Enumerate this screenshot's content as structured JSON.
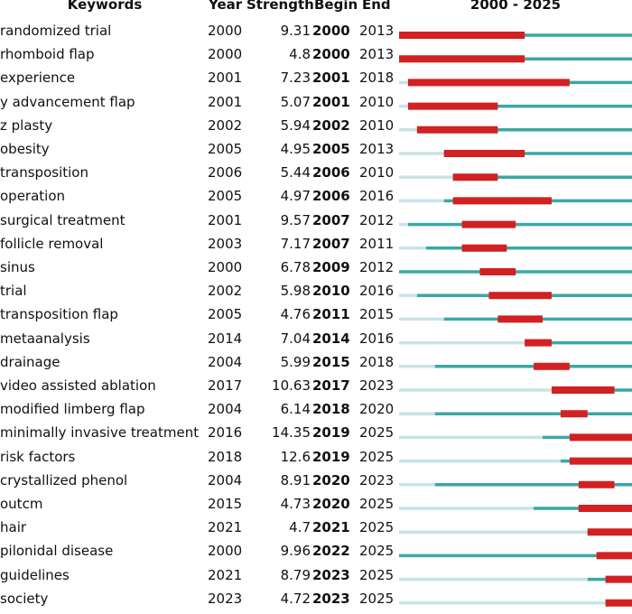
{
  "chart_data": {
    "type": "bar",
    "headers": {
      "keywords": "Keywords",
      "year": "Year",
      "strength": "Strength",
      "begin": "Begin",
      "end": "End",
      "range": "2000 - 2025"
    },
    "range": [
      2000,
      2025
    ],
    "colors": {
      "before": "#c9e3e5",
      "active": "#3aa8a5",
      "burst": "#d32022"
    },
    "rows": [
      {
        "keyword": "randomized trial",
        "year": "2000",
        "strength": "9.31",
        "begin": "2000",
        "end": "2013"
      },
      {
        "keyword": "rhomboid flap",
        "year": "2000",
        "strength": "4.8",
        "begin": "2000",
        "end": "2013"
      },
      {
        "keyword": "experience",
        "year": "2001",
        "strength": "7.23",
        "begin": "2001",
        "end": "2018"
      },
      {
        "keyword": "y advancement flap",
        "year": "2001",
        "strength": "5.07",
        "begin": "2001",
        "end": "2010"
      },
      {
        "keyword": "z plasty",
        "year": "2002",
        "strength": "5.94",
        "begin": "2002",
        "end": "2010"
      },
      {
        "keyword": "obesity",
        "year": "2005",
        "strength": "4.95",
        "begin": "2005",
        "end": "2013"
      },
      {
        "keyword": "transposition",
        "year": "2006",
        "strength": "5.44",
        "begin": "2006",
        "end": "2010"
      },
      {
        "keyword": "operation",
        "year": "2005",
        "strength": "4.97",
        "begin": "2006",
        "end": "2016"
      },
      {
        "keyword": "surgical treatment",
        "year": "2001",
        "strength": "9.57",
        "begin": "2007",
        "end": "2012"
      },
      {
        "keyword": "follicle removal",
        "year": "2003",
        "strength": "7.17",
        "begin": "2007",
        "end": "2011"
      },
      {
        "keyword": "sinus",
        "year": "2000",
        "strength": "6.78",
        "begin": "2009",
        "end": "2012"
      },
      {
        "keyword": "trial",
        "year": "2002",
        "strength": "5.98",
        "begin": "2010",
        "end": "2016"
      },
      {
        "keyword": "transposition flap",
        "year": "2005",
        "strength": "4.76",
        "begin": "2011",
        "end": "2015"
      },
      {
        "keyword": "metaanalysis",
        "year": "2014",
        "strength": "7.04",
        "begin": "2014",
        "end": "2016"
      },
      {
        "keyword": "drainage",
        "year": "2004",
        "strength": "5.99",
        "begin": "2015",
        "end": "2018"
      },
      {
        "keyword": "video assisted ablation",
        "year": "2017",
        "strength": "10.63",
        "begin": "2017",
        "end": "2023"
      },
      {
        "keyword": "modified limberg flap",
        "year": "2004",
        "strength": "6.14",
        "begin": "2018",
        "end": "2020"
      },
      {
        "keyword": "minimally invasive treatment",
        "year": "2016",
        "strength": "14.35",
        "begin": "2019",
        "end": "2025"
      },
      {
        "keyword": "risk factors",
        "year": "2018",
        "strength": "12.6",
        "begin": "2019",
        "end": "2025"
      },
      {
        "keyword": "crystallized phenol",
        "year": "2004",
        "strength": "8.91",
        "begin": "2020",
        "end": "2023"
      },
      {
        "keyword": "outcm",
        "year": "2015",
        "strength": "4.73",
        "begin": "2020",
        "end": "2025"
      },
      {
        "keyword": "hair",
        "year": "2021",
        "strength": "4.7",
        "begin": "2021",
        "end": "2025"
      },
      {
        "keyword": "pilonidal disease",
        "year": "2000",
        "strength": "9.96",
        "begin": "2022",
        "end": "2025"
      },
      {
        "keyword": "guidelines",
        "year": "2021",
        "strength": "8.79",
        "begin": "2023",
        "end": "2025"
      },
      {
        "keyword": "society",
        "year": "2023",
        "strength": "4.72",
        "begin": "2023",
        "end": "2025"
      }
    ]
  }
}
